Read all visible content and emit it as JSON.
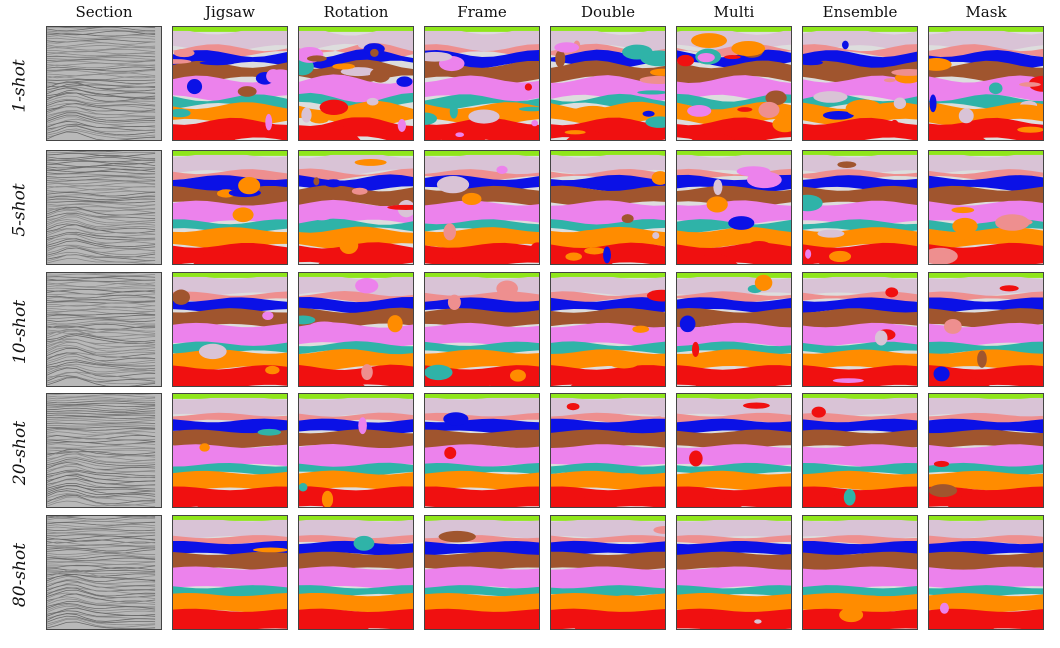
{
  "columns": [
    "Section",
    "Jigsaw",
    "Rotation",
    "Frame",
    "Double",
    "Multi",
    "Ensemble",
    "Mask"
  ],
  "rows": [
    "1-shot",
    "5-shot",
    "10-shot",
    "20-shot",
    "80-shot"
  ],
  "colors": {
    "lime": "#8fe61a",
    "lavender": "#d9c3d6",
    "salmon": "#ee8f8f",
    "blue": "#0b11e6",
    "brown": "#a0552e",
    "violet": "#ec82ec",
    "teal": "#2fb3a8",
    "orange": "#ff8c00",
    "red": "#f01010",
    "seismic_dark": "#6a6a6a",
    "seismic_light": "#b9b9b9"
  },
  "icons": {
    "seismic_section": "seismic-section-icon",
    "segmentation_map": "segmentation-map-icon"
  }
}
